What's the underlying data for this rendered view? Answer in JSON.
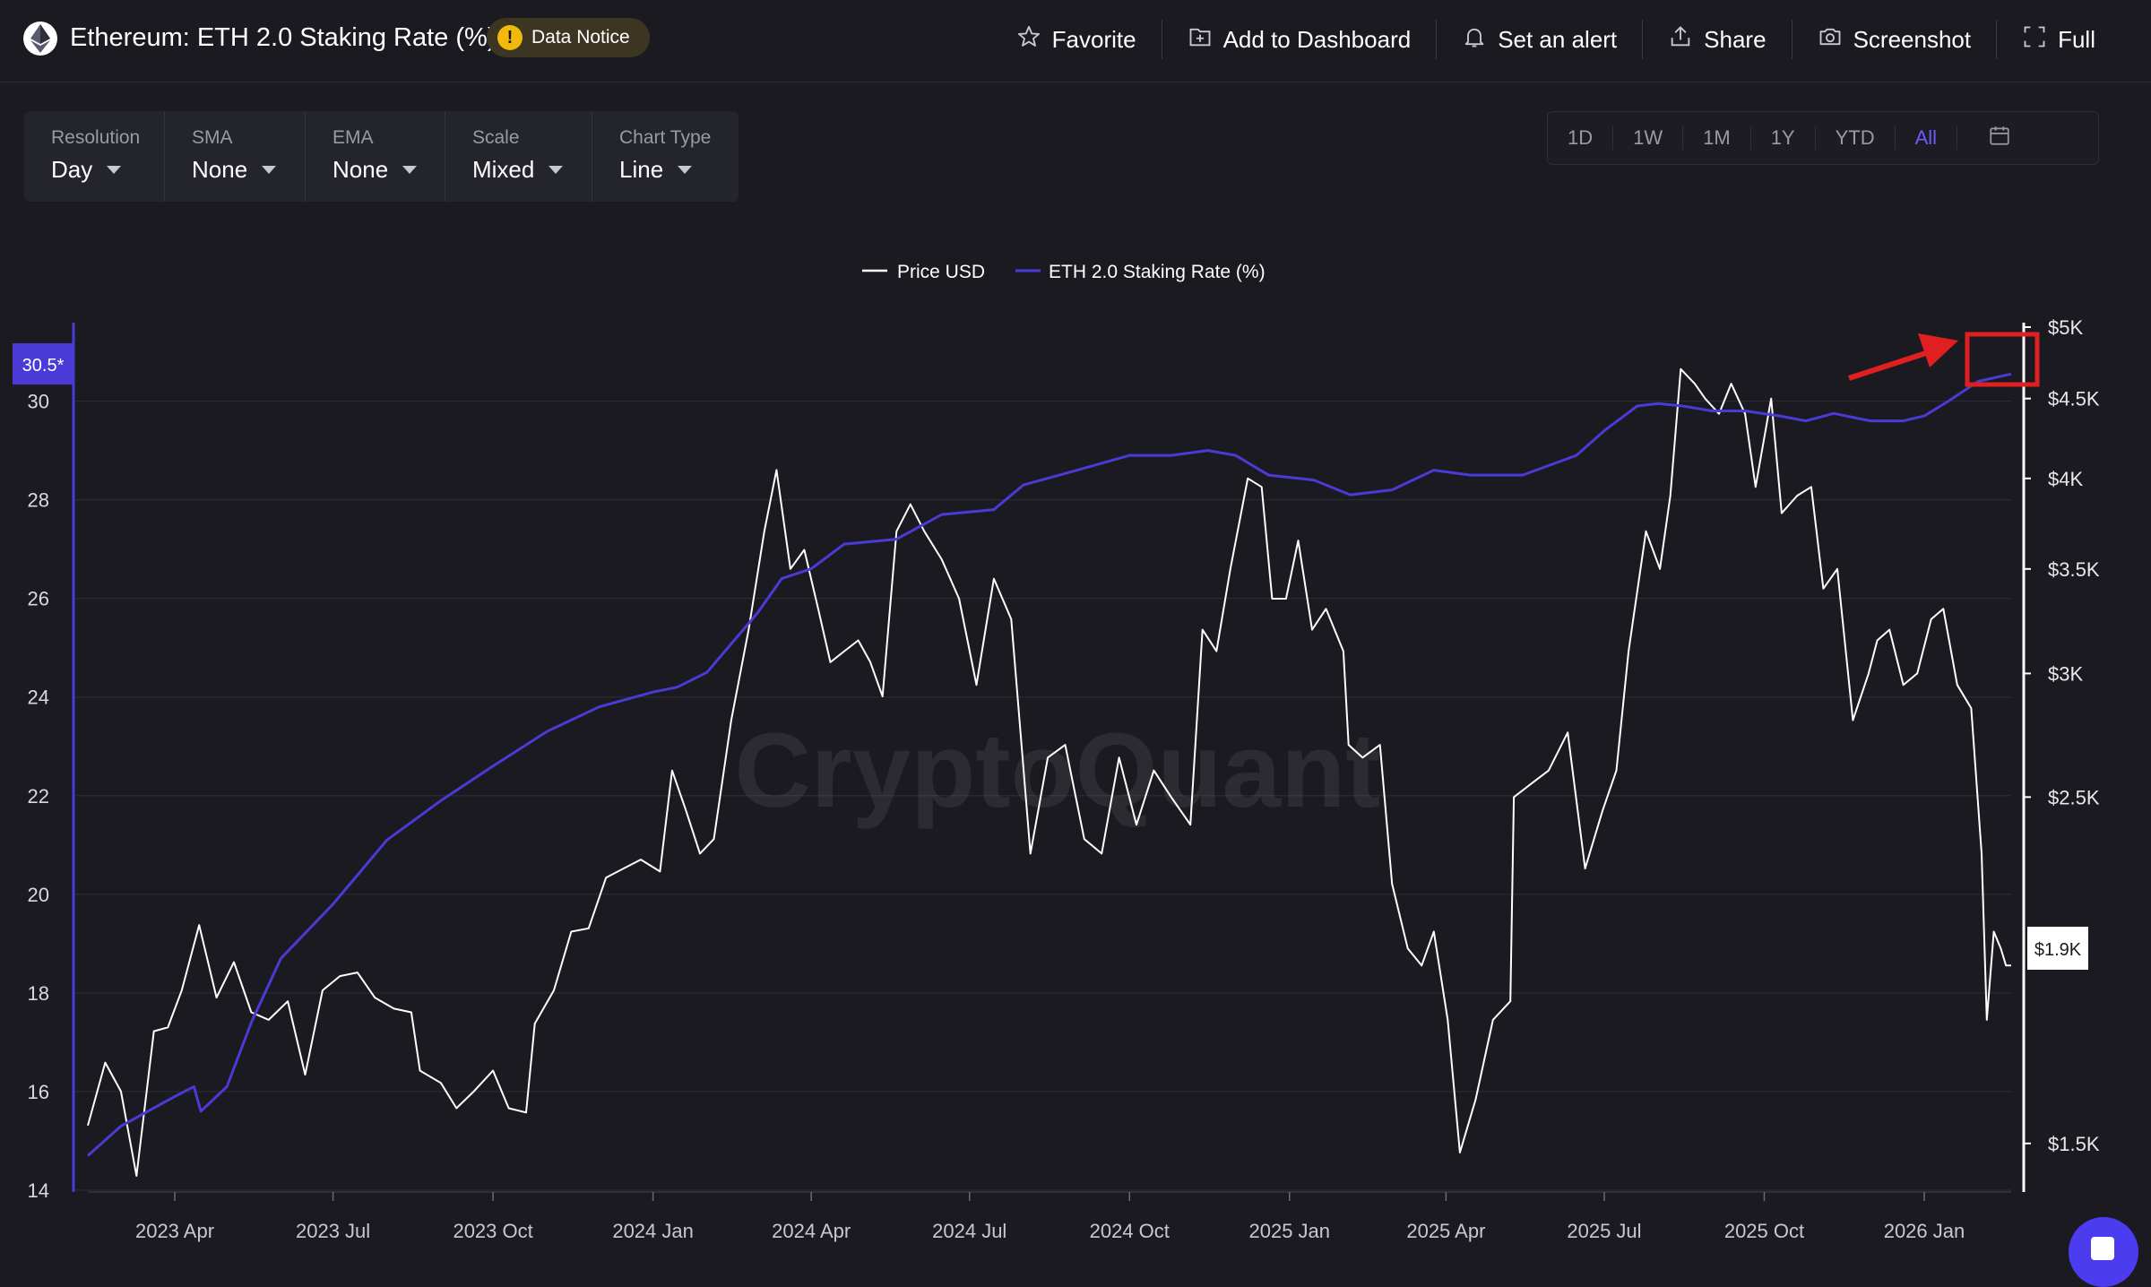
{
  "header": {
    "title": "Ethereum: ETH 2.0 Staking Rate (%)",
    "notice": "Data Notice",
    "actions": [
      {
        "label": "Favorite",
        "icon": "star-icon"
      },
      {
        "label": "Add to Dashboard",
        "icon": "dashboard-add-icon"
      },
      {
        "label": "Set an alert",
        "icon": "bell-icon"
      },
      {
        "label": "Share",
        "icon": "share-icon"
      },
      {
        "label": "Screenshot",
        "icon": "camera-icon"
      },
      {
        "label": "Full",
        "icon": "fullscreen-icon"
      }
    ]
  },
  "controls": [
    {
      "label": "Resolution",
      "value": "Day"
    },
    {
      "label": "SMA",
      "value": "None"
    },
    {
      "label": "EMA",
      "value": "None"
    },
    {
      "label": "Scale",
      "value": "Mixed"
    },
    {
      "label": "Chart Type",
      "value": "Line"
    }
  ],
  "ranges": {
    "items": [
      "1D",
      "1W",
      "1M",
      "1Y",
      "YTD",
      "All"
    ],
    "active": "All"
  },
  "watermark": "CryptoQuant",
  "colors": {
    "background": "#1a1a20",
    "price_line": "#ffffff",
    "staking_line": "#4a3ad6",
    "accent": "#6a5cff",
    "annotation": "#e02020",
    "notice": "#f0b90b"
  },
  "chart_data": {
    "type": "line",
    "legend_position": "top-center",
    "x_ticks": [
      "2023 Apr",
      "2023 Jul",
      "2023 Oct",
      "2024 Jan",
      "2024 Apr",
      "2024 Jul",
      "2024 Oct",
      "2025 Jan",
      "2025 Apr",
      "2025 Jul",
      "2025 Oct",
      "2026 Jan"
    ],
    "x_range": [
      "2023-02-10",
      "2026-02-20"
    ],
    "y_left": {
      "ticks": [
        14,
        16,
        18,
        20,
        22,
        24,
        26,
        28,
        30
      ],
      "range": [
        14,
        31.5
      ]
    },
    "y_right": {
      "scale": "log",
      "ticks": [
        "$1.5K",
        "$2.5K",
        "$3K",
        "$3.5K",
        "$4K",
        "$4.5K",
        "$5K"
      ],
      "tick_values": [
        1500,
        2500,
        3000,
        3500,
        4000,
        4500,
        5000
      ],
      "range": [
        1400,
        5000
      ]
    },
    "left_badge": "30.5*",
    "right_badge": "$1.9K",
    "grid": true,
    "series": [
      {
        "name": "Price USD",
        "axis": "right",
        "color": "#ffffff",
        "points": [
          [
            "2023-02-10",
            1540
          ],
          [
            "2023-02-20",
            1690
          ],
          [
            "2023-03-01",
            1620
          ],
          [
            "2023-03-10",
            1430
          ],
          [
            "2023-03-20",
            1770
          ],
          [
            "2023-03-28",
            1780
          ],
          [
            "2023-04-05",
            1880
          ],
          [
            "2023-04-15",
            2070
          ],
          [
            "2023-04-25",
            1860
          ],
          [
            "2023-05-05",
            1960
          ],
          [
            "2023-05-15",
            1820
          ],
          [
            "2023-05-25",
            1800
          ],
          [
            "2023-06-05",
            1850
          ],
          [
            "2023-06-15",
            1660
          ],
          [
            "2023-06-25",
            1880
          ],
          [
            "2023-07-05",
            1920
          ],
          [
            "2023-07-15",
            1930
          ],
          [
            "2023-07-25",
            1860
          ],
          [
            "2023-08-05",
            1830
          ],
          [
            "2023-08-15",
            1820
          ],
          [
            "2023-08-20",
            1670
          ],
          [
            "2023-09-01",
            1640
          ],
          [
            "2023-09-10",
            1580
          ],
          [
            "2023-09-20",
            1620
          ],
          [
            "2023-10-01",
            1670
          ],
          [
            "2023-10-10",
            1580
          ],
          [
            "2023-10-20",
            1570
          ],
          [
            "2023-10-25",
            1790
          ],
          [
            "2023-11-05",
            1880
          ],
          [
            "2023-11-15",
            2050
          ],
          [
            "2023-11-25",
            2060
          ],
          [
            "2023-12-05",
            2220
          ],
          [
            "2023-12-15",
            2250
          ],
          [
            "2023-12-25",
            2280
          ],
          [
            "2024-01-05",
            2240
          ],
          [
            "2024-01-12",
            2600
          ],
          [
            "2024-01-20",
            2450
          ],
          [
            "2024-01-28",
            2300
          ],
          [
            "2024-02-05",
            2350
          ],
          [
            "2024-02-15",
            2800
          ],
          [
            "2024-02-25",
            3200
          ],
          [
            "2024-03-05",
            3700
          ],
          [
            "2024-03-12",
            4050
          ],
          [
            "2024-03-20",
            3500
          ],
          [
            "2024-03-28",
            3600
          ],
          [
            "2024-04-05",
            3300
          ],
          [
            "2024-04-12",
            3050
          ],
          [
            "2024-04-20",
            3100
          ],
          [
            "2024-04-28",
            3150
          ],
          [
            "2024-05-05",
            3050
          ],
          [
            "2024-05-12",
            2900
          ],
          [
            "2024-05-20",
            3700
          ],
          [
            "2024-05-28",
            3850
          ],
          [
            "2024-06-05",
            3700
          ],
          [
            "2024-06-15",
            3550
          ],
          [
            "2024-06-25",
            3350
          ],
          [
            "2024-07-05",
            2950
          ],
          [
            "2024-07-15",
            3450
          ],
          [
            "2024-07-25",
            3250
          ],
          [
            "2024-08-05",
            2300
          ],
          [
            "2024-08-15",
            2650
          ],
          [
            "2024-08-25",
            2700
          ],
          [
            "2024-09-05",
            2350
          ],
          [
            "2024-09-15",
            2300
          ],
          [
            "2024-09-25",
            2650
          ],
          [
            "2024-10-05",
            2400
          ],
          [
            "2024-10-15",
            2600
          ],
          [
            "2024-10-25",
            2500
          ],
          [
            "2024-11-05",
            2400
          ],
          [
            "2024-11-12",
            3200
          ],
          [
            "2024-11-20",
            3100
          ],
          [
            "2024-11-28",
            3500
          ],
          [
            "2024-12-08",
            4000
          ],
          [
            "2024-12-16",
            3950
          ],
          [
            "2024-12-22",
            3350
          ],
          [
            "2024-12-30",
            3350
          ],
          [
            "2025-01-06",
            3650
          ],
          [
            "2025-01-14",
            3200
          ],
          [
            "2025-01-22",
            3300
          ],
          [
            "2025-02-01",
            3100
          ],
          [
            "2025-02-04",
            2700
          ],
          [
            "2025-02-12",
            2650
          ],
          [
            "2025-02-22",
            2700
          ],
          [
            "2025-03-01",
            2200
          ],
          [
            "2025-03-10",
            2000
          ],
          [
            "2025-03-18",
            1950
          ],
          [
            "2025-03-25",
            2050
          ],
          [
            "2025-04-02",
            1800
          ],
          [
            "2025-04-09",
            1480
          ],
          [
            "2025-04-18",
            1600
          ],
          [
            "2025-04-28",
            1800
          ],
          [
            "2025-05-08",
            1850
          ],
          [
            "2025-05-10",
            2500
          ],
          [
            "2025-05-20",
            2550
          ],
          [
            "2025-05-30",
            2600
          ],
          [
            "2025-06-10",
            2750
          ],
          [
            "2025-06-20",
            2250
          ],
          [
            "2025-06-30",
            2450
          ],
          [
            "2025-07-08",
            2600
          ],
          [
            "2025-07-15",
            3100
          ],
          [
            "2025-07-25",
            3700
          ],
          [
            "2025-08-02",
            3500
          ],
          [
            "2025-08-08",
            3900
          ],
          [
            "2025-08-14",
            4700
          ],
          [
            "2025-08-22",
            4600
          ],
          [
            "2025-08-28",
            4500
          ],
          [
            "2025-09-05",
            4400
          ],
          [
            "2025-09-12",
            4600
          ],
          [
            "2025-09-20",
            4400
          ],
          [
            "2025-09-26",
            3950
          ],
          [
            "2025-10-05",
            4500
          ],
          [
            "2025-10-11",
            3800
          ],
          [
            "2025-10-20",
            3900
          ],
          [
            "2025-10-28",
            3950
          ],
          [
            "2025-11-04",
            3400
          ],
          [
            "2025-11-12",
            3500
          ],
          [
            "2025-11-21",
            2800
          ],
          [
            "2025-11-30",
            3000
          ],
          [
            "2025-12-05",
            3150
          ],
          [
            "2025-12-12",
            3200
          ],
          [
            "2025-12-20",
            2950
          ],
          [
            "2025-12-28",
            3000
          ],
          [
            "2026-01-05",
            3250
          ],
          [
            "2026-01-12",
            3300
          ],
          [
            "2026-01-20",
            2950
          ],
          [
            "2026-01-28",
            2850
          ],
          [
            "2026-02-03",
            2300
          ],
          [
            "2026-02-06",
            1800
          ],
          [
            "2026-02-10",
            2050
          ],
          [
            "2026-02-14",
            2000
          ],
          [
            "2026-02-17",
            1950
          ],
          [
            "2026-02-20",
            1950
          ]
        ]
      },
      {
        "name": "ETH 2.0 Staking Rate (%)",
        "axis": "left",
        "color": "#4a3ad6",
        "points": [
          [
            "2023-02-10",
            14.7
          ],
          [
            "2023-03-01",
            15.3
          ],
          [
            "2023-04-01",
            15.9
          ],
          [
            "2023-04-12",
            16.1
          ],
          [
            "2023-04-16",
            15.6
          ],
          [
            "2023-05-01",
            16.1
          ],
          [
            "2023-05-15",
            17.4
          ],
          [
            "2023-06-01",
            18.7
          ],
          [
            "2023-07-01",
            19.8
          ],
          [
            "2023-08-01",
            21.1
          ],
          [
            "2023-09-01",
            21.9
          ],
          [
            "2023-10-01",
            22.6
          ],
          [
            "2023-11-01",
            23.3
          ],
          [
            "2023-12-01",
            23.8
          ],
          [
            "2024-01-01",
            24.1
          ],
          [
            "2024-01-15",
            24.2
          ],
          [
            "2024-02-01",
            24.5
          ],
          [
            "2024-03-01",
            25.7
          ],
          [
            "2024-03-15",
            26.4
          ],
          [
            "2024-04-01",
            26.6
          ],
          [
            "2024-04-20",
            27.1
          ],
          [
            "2024-05-20",
            27.2
          ],
          [
            "2024-06-15",
            27.7
          ],
          [
            "2024-07-15",
            27.8
          ],
          [
            "2024-08-01",
            28.3
          ],
          [
            "2024-09-01",
            28.6
          ],
          [
            "2024-10-01",
            28.9
          ],
          [
            "2024-10-25",
            28.9
          ],
          [
            "2024-11-15",
            29.0
          ],
          [
            "2024-12-01",
            28.9
          ],
          [
            "2024-12-20",
            28.5
          ],
          [
            "2025-01-15",
            28.4
          ],
          [
            "2025-02-05",
            28.1
          ],
          [
            "2025-03-01",
            28.2
          ],
          [
            "2025-03-25",
            28.6
          ],
          [
            "2025-04-15",
            28.5
          ],
          [
            "2025-05-15",
            28.5
          ],
          [
            "2025-06-15",
            28.9
          ],
          [
            "2025-07-01",
            29.4
          ],
          [
            "2025-07-20",
            29.9
          ],
          [
            "2025-08-01",
            29.95
          ],
          [
            "2025-08-15",
            29.9
          ],
          [
            "2025-09-01",
            29.8
          ],
          [
            "2025-09-20",
            29.8
          ],
          [
            "2025-10-10",
            29.7
          ],
          [
            "2025-10-25",
            29.6
          ],
          [
            "2025-11-10",
            29.75
          ],
          [
            "2025-12-01",
            29.6
          ],
          [
            "2025-12-20",
            29.6
          ],
          [
            "2026-01-01",
            29.7
          ],
          [
            "2026-01-15",
            30.0
          ],
          [
            "2026-02-01",
            30.4
          ],
          [
            "2026-02-20",
            30.55
          ]
        ]
      }
    ]
  }
}
